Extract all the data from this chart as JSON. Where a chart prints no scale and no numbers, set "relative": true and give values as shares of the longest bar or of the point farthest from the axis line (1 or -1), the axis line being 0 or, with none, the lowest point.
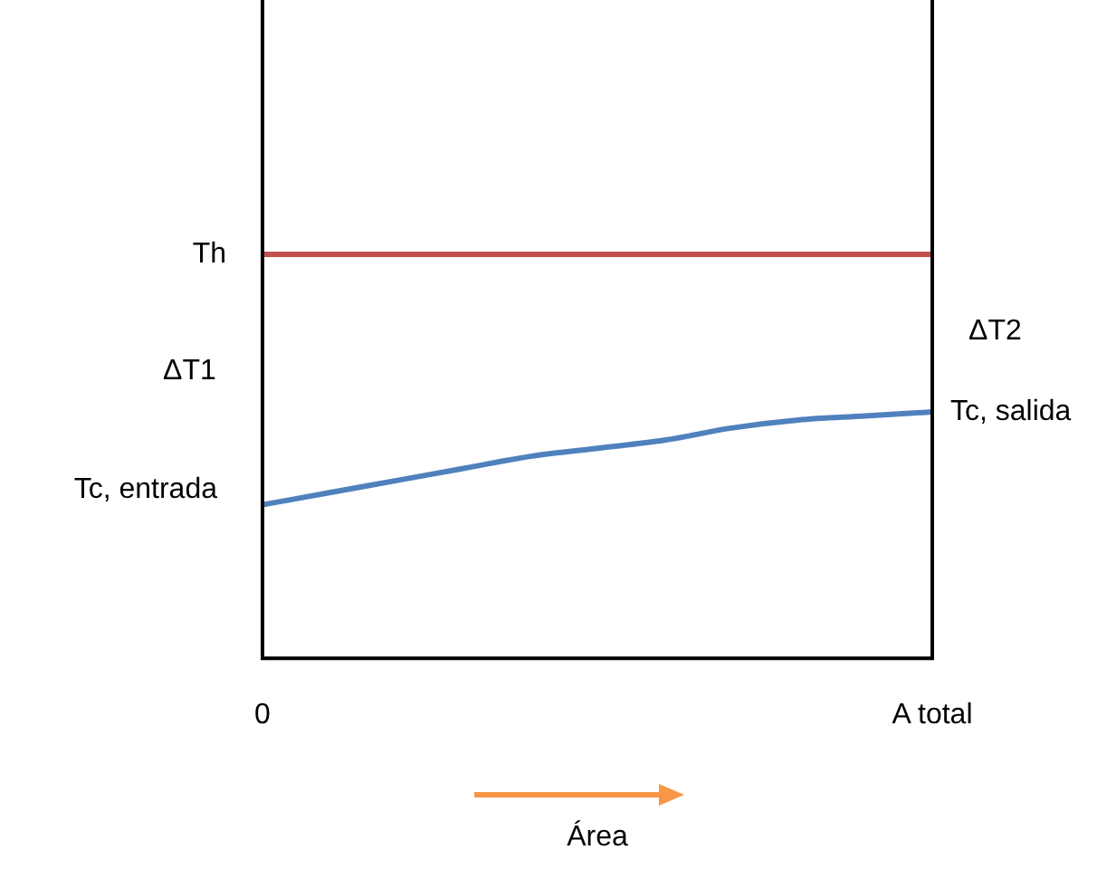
{
  "chart_data": {
    "type": "line",
    "relative": true,
    "xlabel": "Área",
    "categories": [
      "0",
      null,
      null,
      null,
      null,
      null,
      null,
      null,
      null,
      null,
      "A total"
    ],
    "series": [
      {
        "name": "Th",
        "color": "#c0504d",
        "values": [
          1,
          1,
          1,
          1,
          1,
          1,
          1,
          1,
          1,
          1,
          1
        ]
      },
      {
        "color": "#4f81bd",
        "values": [
          0.38,
          0.41,
          0.44,
          0.47,
          0.5,
          0.52,
          0.54,
          0.57,
          0.59,
          0.6,
          0.61
        ]
      }
    ],
    "annotations": [
      "ΔT1",
      "ΔT2",
      {
        "text": "Tc, entrada",
        "x": "0",
        "y": 0.38
      },
      {
        "text": "Tc, salida",
        "x": "A total",
        "y": 0.61
      }
    ],
    "grid": false,
    "legend": false,
    "marker": "none",
    "line_style": "solid"
  }
}
